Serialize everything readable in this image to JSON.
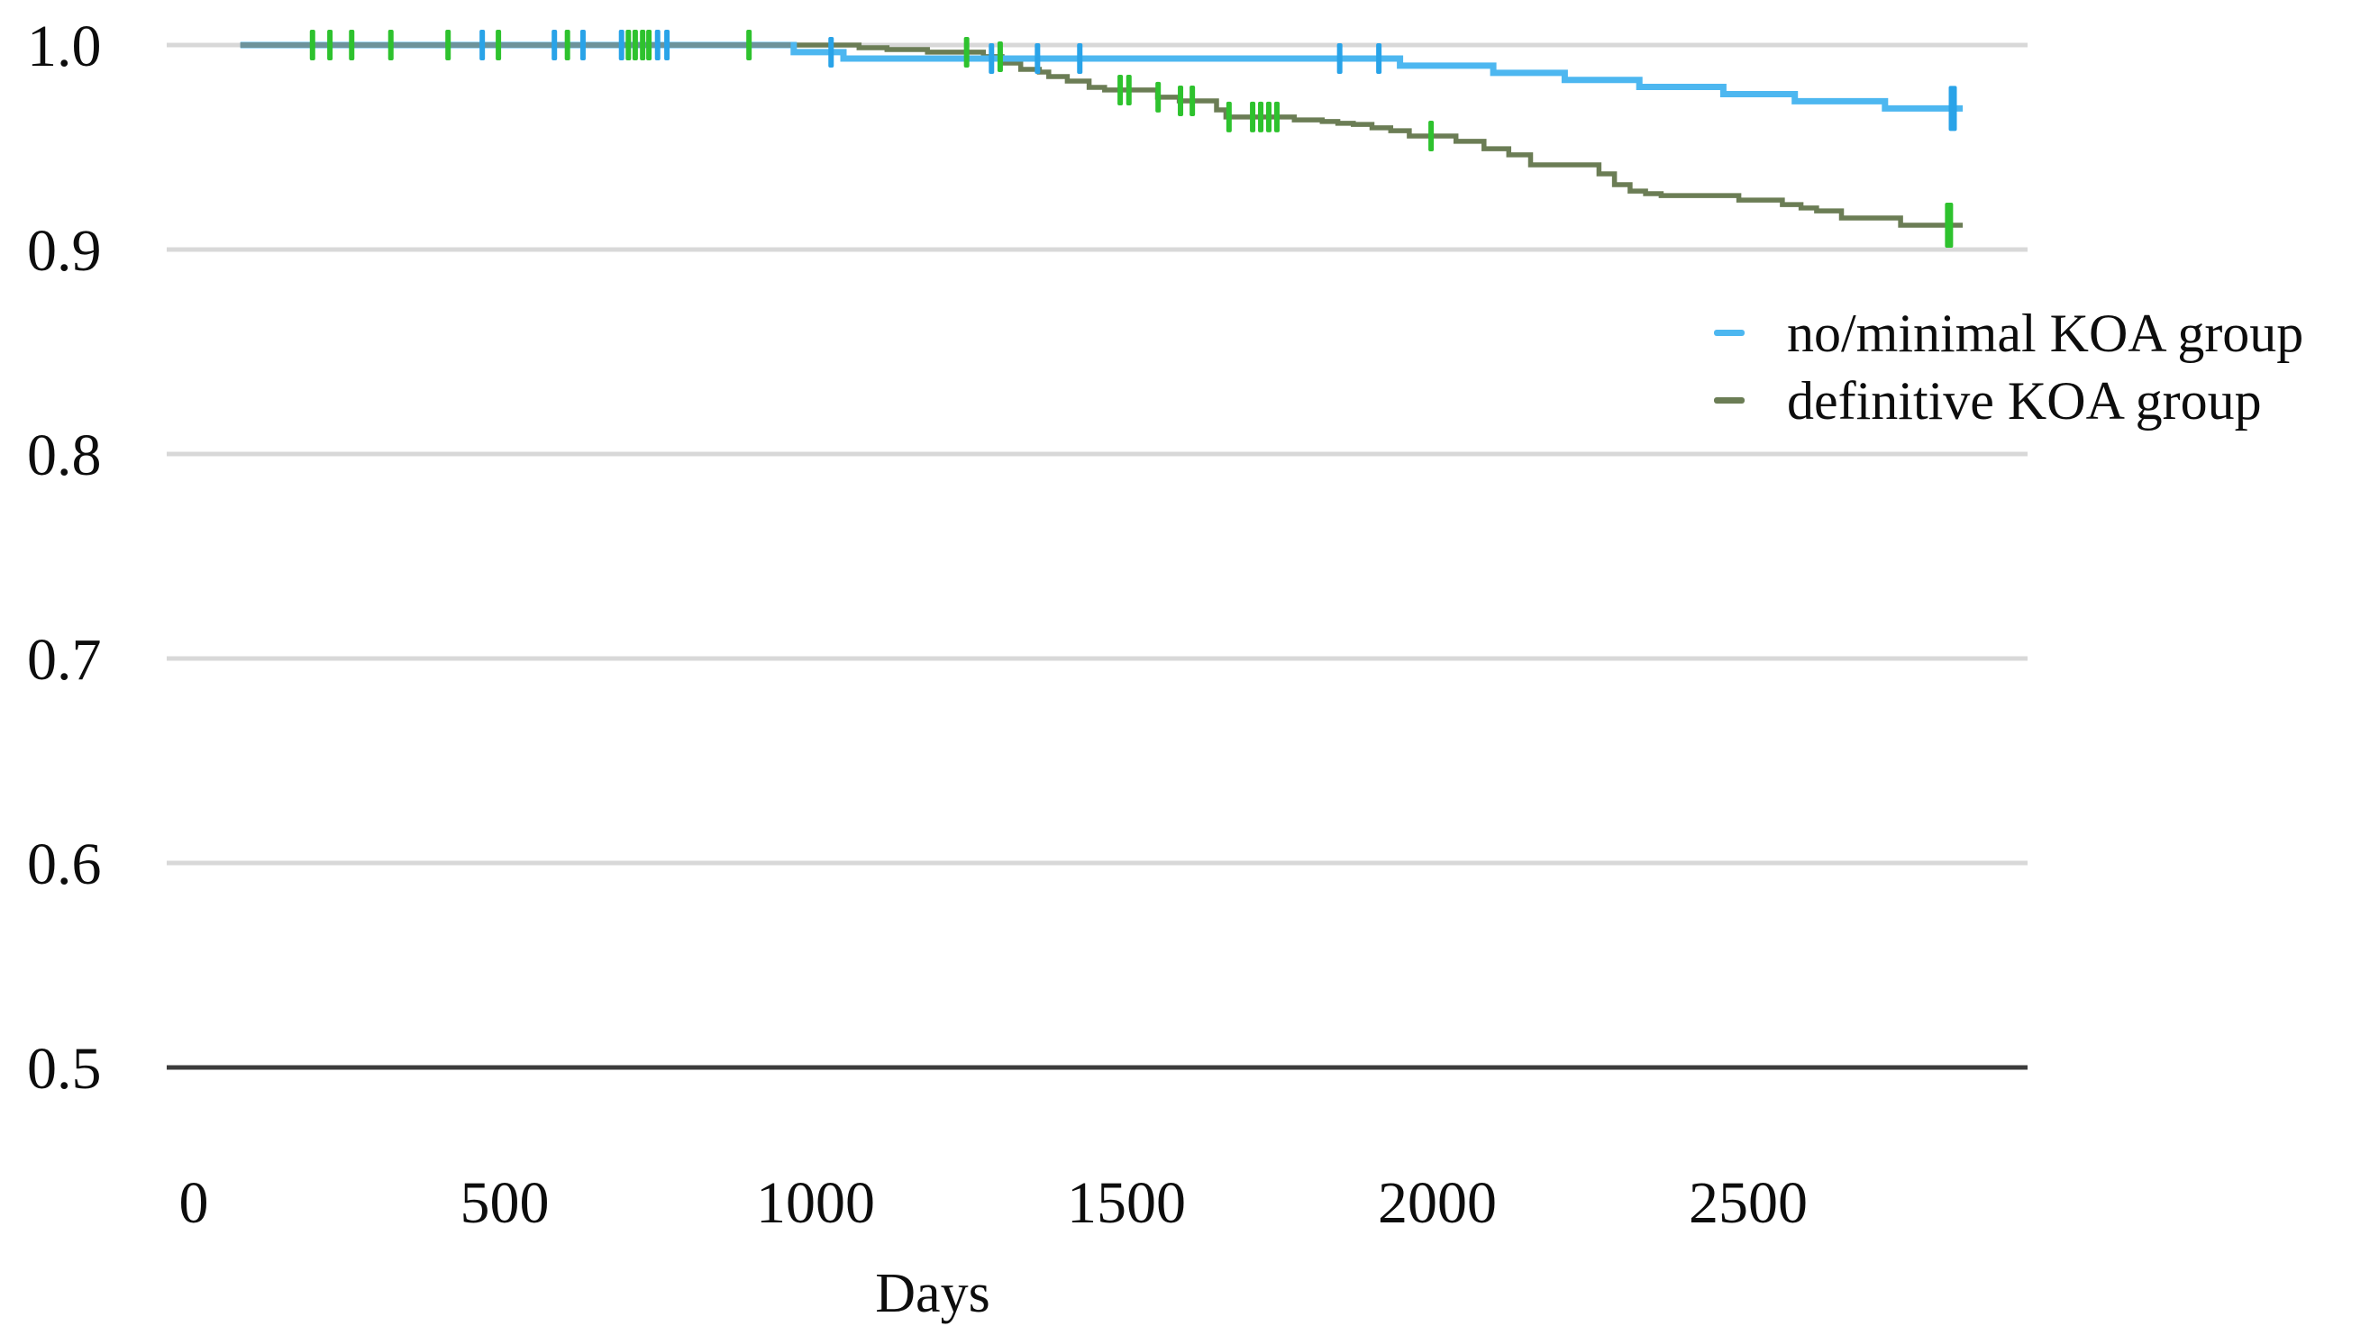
{
  "chart_data": {
    "type": "line",
    "variant": "kaplan-meier-step",
    "title": "",
    "xlabel": "Days",
    "ylabel": "",
    "xlim": [
      0,
      2950
    ],
    "ylim": [
      0.5,
      1.0
    ],
    "grid": true,
    "legend_position": "upper-right",
    "x_ticks": [
      {
        "value": 0,
        "label": "0"
      },
      {
        "value": 500,
        "label": "500"
      },
      {
        "value": 1000,
        "label": "1000"
      },
      {
        "value": 1500,
        "label": "1500"
      },
      {
        "value": 2000,
        "label": "2000"
      },
      {
        "value": 2500,
        "label": "2500"
      }
    ],
    "y_ticks": [
      {
        "value": 1.0,
        "label": "1.0"
      },
      {
        "value": 0.9,
        "label": "0.9"
      },
      {
        "value": 0.8,
        "label": "0.8"
      },
      {
        "value": 0.7,
        "label": "0.7"
      },
      {
        "value": 0.6,
        "label": "0.6"
      },
      {
        "value": 0.5,
        "label": "0.5"
      }
    ],
    "colors": {
      "grid": "#d8d8d8",
      "axis": "#3c3c3c",
      "text": "#0d0d0d",
      "overlap": "#6d939b"
    },
    "overlap_segment": {
      "start_day": 75,
      "end_day": 960,
      "value": 1.0
    },
    "series": [
      {
        "name": "no/minimal KOA group",
        "color": "#4db7f0",
        "censor_color": "#29a3e8",
        "start_day": 75,
        "end_day": 2845,
        "final_value": 0.969,
        "steps": [
          [
            75,
            1.0
          ],
          [
            965,
            0.9965
          ],
          [
            1045,
            0.9934
          ],
          [
            1940,
            0.9899
          ],
          [
            2090,
            0.9864
          ],
          [
            2205,
            0.9829
          ],
          [
            2325,
            0.9795
          ],
          [
            2460,
            0.976
          ],
          [
            2575,
            0.9725
          ],
          [
            2720,
            0.969
          ],
          [
            2845,
            0.969
          ]
        ],
        "censors": [
          [
            464,
            1.0
          ],
          [
            580,
            1.0
          ],
          [
            626,
            1.0
          ],
          [
            688,
            1.0
          ],
          [
            746,
            1.0
          ],
          [
            761,
            1.0
          ],
          [
            1025,
            0.9965
          ],
          [
            1283,
            0.9934
          ],
          [
            1357,
            0.9934
          ],
          [
            1425,
            0.9934
          ],
          [
            1843,
            0.9934
          ],
          [
            1906,
            0.9934
          ],
          [
            2829,
            0.969,
            1
          ]
        ]
      },
      {
        "name": "definitive KOA group",
        "color": "#6b7d55",
        "censor_color": "#2ec22e",
        "start_day": 75,
        "end_day": 2845,
        "final_value": 0.912,
        "steps": [
          [
            75,
            1.0
          ],
          [
            1070,
            0.9987
          ],
          [
            1115,
            0.9978
          ],
          [
            1180,
            0.9965
          ],
          [
            1270,
            0.9943
          ],
          [
            1300,
            0.9912
          ],
          [
            1330,
            0.9881
          ],
          [
            1360,
            0.9868
          ],
          [
            1375,
            0.9846
          ],
          [
            1405,
            0.9824
          ],
          [
            1440,
            0.9793
          ],
          [
            1465,
            0.978
          ],
          [
            1550,
            0.9745
          ],
          [
            1585,
            0.9727
          ],
          [
            1645,
            0.9683
          ],
          [
            1660,
            0.9648
          ],
          [
            1770,
            0.9634
          ],
          [
            1815,
            0.9626
          ],
          [
            1840,
            0.9617
          ],
          [
            1865,
            0.9612
          ],
          [
            1895,
            0.9595
          ],
          [
            1925,
            0.9581
          ],
          [
            1955,
            0.9555
          ],
          [
            2030,
            0.9529
          ],
          [
            2075,
            0.9493
          ],
          [
            2115,
            0.9463
          ],
          [
            2150,
            0.9414
          ],
          [
            2260,
            0.937
          ],
          [
            2285,
            0.9317
          ],
          [
            2310,
            0.9286
          ],
          [
            2335,
            0.9273
          ],
          [
            2360,
            0.9264
          ],
          [
            2485,
            0.9242
          ],
          [
            2555,
            0.922
          ],
          [
            2585,
            0.9203
          ],
          [
            2610,
            0.9189
          ],
          [
            2650,
            0.9154
          ],
          [
            2745,
            0.9119
          ],
          [
            2845,
            0.9119
          ]
        ],
        "censors": [
          [
            191,
            1.0
          ],
          [
            219,
            1.0
          ],
          [
            254,
            1.0
          ],
          [
            317,
            1.0
          ],
          [
            409,
            1.0
          ],
          [
            490,
            1.0
          ],
          [
            601,
            1.0
          ],
          [
            699,
            1.0
          ],
          [
            710,
            1.0
          ],
          [
            722,
            1.0
          ],
          [
            732,
            1.0
          ],
          [
            893,
            1.0
          ],
          [
            1243,
            0.9965
          ],
          [
            1297,
            0.9943
          ],
          [
            1490,
            0.978
          ],
          [
            1504,
            0.978
          ],
          [
            1551,
            0.9745
          ],
          [
            1587,
            0.9727
          ],
          [
            1606,
            0.9727
          ],
          [
            1665,
            0.9648
          ],
          [
            1703,
            0.9648
          ],
          [
            1716,
            0.9648
          ],
          [
            1729,
            0.9648
          ],
          [
            1742,
            0.9648
          ],
          [
            1990,
            0.9555
          ],
          [
            2823,
            0.9119,
            1
          ]
        ]
      }
    ]
  }
}
